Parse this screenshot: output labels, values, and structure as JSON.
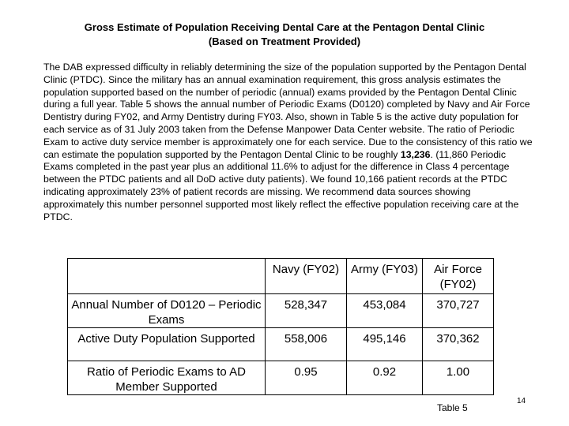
{
  "title": {
    "line1": "Gross Estimate of Population Receiving Dental Care at the Pentagon Dental Clinic",
    "line2": "(Based on Treatment Provided)"
  },
  "paragraph": {
    "before_bold": "The DAB expressed difficulty in reliably determining the size of the population supported by the Pentagon Dental Clinic (PTDC).  Since the military has an annual examination requirement, this gross analysis estimates the population supported based on the number of periodic (annual) exams provided by the Pentagon Dental Clinic during a full year.  Table 5 shows the annual number of Periodic Exams (D0120) completed by Navy and Air Force Dentistry during FY02, and Army Dentistry during FY03.  Also, shown in Table 5 is the active duty population for each service as of 31 July 2003 taken from the Defense Manpower Data Center website.  The ratio of Periodic Exam to active duty service member is approximately one for each service.  Due to the consistency of this ratio we can estimate the population supported by the Pentagon Dental Clinic to be roughly ",
    "bold": "13,236",
    "after_bold": ". (11,860 Periodic Exams completed in the past year plus an additional 11.6% to adjust for the difference in Class 4 percentage between the PTDC patients and all DoD active duty patients).  We found 10,166 patient records at the PTDC indicating approximately 23% of patient records are missing.  We recommend data sources showing approximately this number personnel supported most likely reflect the effective population receiving care at the PTDC."
  },
  "table": {
    "headers": [
      "",
      "Navy (FY02)",
      "Army (FY03)",
      "Air Force (FY02)"
    ],
    "rows": [
      {
        "label": "Annual Number of  D0120 – Periodic Exams",
        "navy": "528,347",
        "army": "453,084",
        "air_force": "370,727"
      },
      {
        "label": "Active Duty Population Supported",
        "navy": "558,006",
        "army": "495,146",
        "air_force": "370,362"
      },
      {
        "label": "Ratio of Periodic Exams to AD Member Supported",
        "navy": "0.95",
        "army": "0.92",
        "air_force": "1.00"
      }
    ]
  },
  "caption": "Table 5",
  "page_number": "14"
}
